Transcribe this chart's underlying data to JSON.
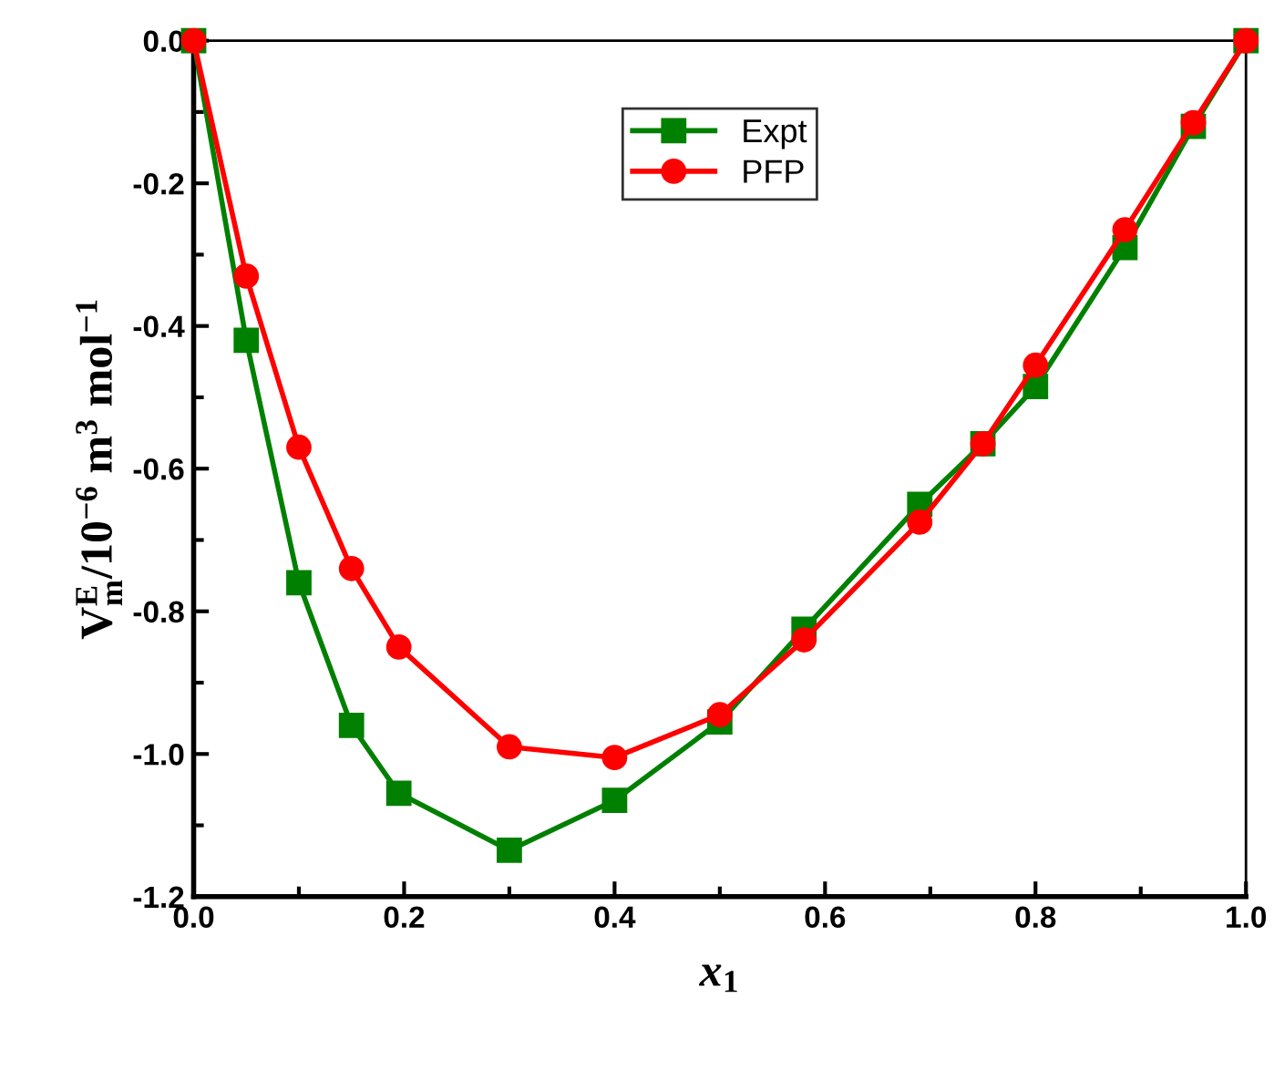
{
  "chart_data": {
    "type": "line",
    "xlabel": "x$_{1}$",
    "ylabel": "V$^{E}$$_{m}$/10$^{−6}$ m$^{3}$ mol$^{−1}$",
    "x": [
      0,
      0.05,
      0.1,
      0.15,
      0.195,
      0.3,
      0.4,
      0.5,
      0.58,
      0.69,
      0.75,
      0.8,
      0.885,
      0.95,
      1.0
    ],
    "series": [
      {
        "name": "Expt",
        "color": "#008000",
        "marker": "square",
        "values": [
          0,
          -0.42,
          -0.76,
          -0.96,
          -1.055,
          -1.135,
          -1.065,
          -0.955,
          -0.825,
          -0.65,
          -0.565,
          -0.485,
          -0.29,
          -0.12,
          0
        ]
      },
      {
        "name": "PFP",
        "color": "#ff0000",
        "marker": "circle",
        "values": [
          0,
          -0.33,
          -0.57,
          -0.74,
          -0.85,
          -0.99,
          -1.005,
          -0.945,
          -0.84,
          -0.675,
          -0.565,
          -0.455,
          -0.265,
          -0.115,
          0
        ]
      }
    ],
    "xlim": [
      0,
      1.0
    ],
    "xticks": [
      {
        "value": 0,
        "label": "0.0"
      },
      0.2,
      0.4,
      0.6,
      0.8,
      {
        "value": 1,
        "label": "1.0"
      }
    ],
    "ylim": [
      -1.2,
      0
    ],
    "yticks": [
      -1.2,
      {
        "value": -1.0,
        "label": "-1.0"
      },
      -0.8,
      -0.6,
      -0.4,
      -0.2,
      {
        "value": 0,
        "label": "0.0"
      }
    ],
    "grid": false,
    "legend": "top center",
    "line_style": "solid"
  }
}
